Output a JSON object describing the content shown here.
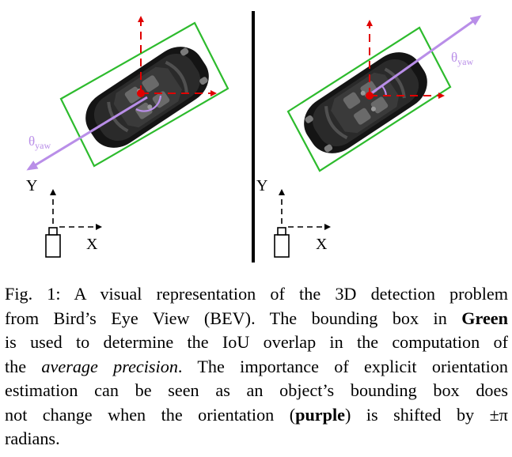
{
  "figure": {
    "left_panel": {
      "theta_label": "θ",
      "theta_sub": "yaw",
      "axis_y": "Y",
      "axis_x": "X"
    },
    "right_panel": {
      "theta_label": "θ",
      "theta_sub": "yaw",
      "axis_y": "Y",
      "axis_x": "X"
    },
    "colors": {
      "bounding_box": "#2dbb2d",
      "orientation": "#b98ee8",
      "center_axes": "#e00000",
      "car_body": "#141414"
    }
  },
  "caption": {
    "label": "Fig. 1:",
    "l1": "A visual representation of the 3D detection problem",
    "l2a": "from Bird’s Eye View (BEV). The bounding box in ",
    "l2b": "Green",
    "l3": "is used to determine the IoU overlap in the computation of",
    "l4a": "the ",
    "l4b": "average precision",
    "l4c": ". The importance of explicit orientation",
    "l5": "estimation can be seen as an object’s bounding box does",
    "l6a": "not change when the orientation (",
    "l6b": "purple",
    "l6c": ") is shifted by ",
    "l6d": "±π",
    "l7": "radians."
  }
}
